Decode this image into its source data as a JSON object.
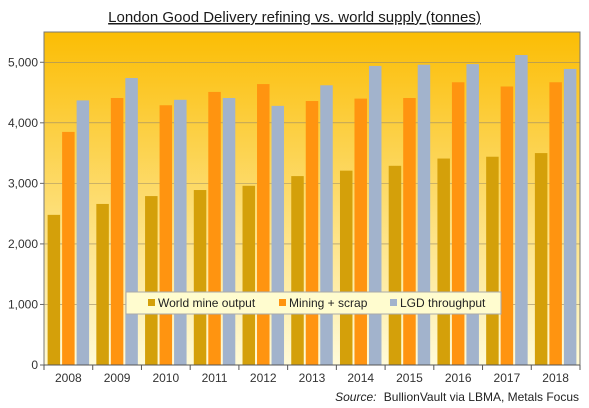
{
  "chart_data": {
    "type": "bar",
    "title": "London Good Delivery refining vs. world supply (tonnes)",
    "categories": [
      "2008",
      "2009",
      "2010",
      "2011",
      "2012",
      "2013",
      "2014",
      "2015",
      "2016",
      "2017",
      "2018"
    ],
    "series": [
      {
        "name": "World mine output",
        "color": "#d4a00a",
        "values": [
          2480,
          2660,
          2790,
          2890,
          2960,
          3120,
          3210,
          3290,
          3410,
          3440,
          3500
        ]
      },
      {
        "name": "Mining + scrap",
        "color": "#ff9410",
        "values": [
          3850,
          4410,
          4290,
          4510,
          4640,
          4360,
          4400,
          4410,
          4670,
          4600,
          4670
        ]
      },
      {
        "name": "LGD throughput",
        "color": "#a2b3cc",
        "values": [
          4370,
          4740,
          4380,
          4410,
          4280,
          4620,
          4940,
          4960,
          4970,
          5120,
          4890
        ]
      }
    ],
    "ylim": [
      0,
      5500
    ],
    "yticks": [
      0,
      1000,
      2000,
      3000,
      4000,
      5000
    ],
    "ytick_labels": [
      "0",
      "1,000",
      "2,000",
      "3,000",
      "4,000",
      "5,000"
    ],
    "grid": true,
    "legend_position": "bottom-center",
    "source_label": "Source:",
    "source_text": "BullionVault via LBMA, Metals Focus"
  }
}
